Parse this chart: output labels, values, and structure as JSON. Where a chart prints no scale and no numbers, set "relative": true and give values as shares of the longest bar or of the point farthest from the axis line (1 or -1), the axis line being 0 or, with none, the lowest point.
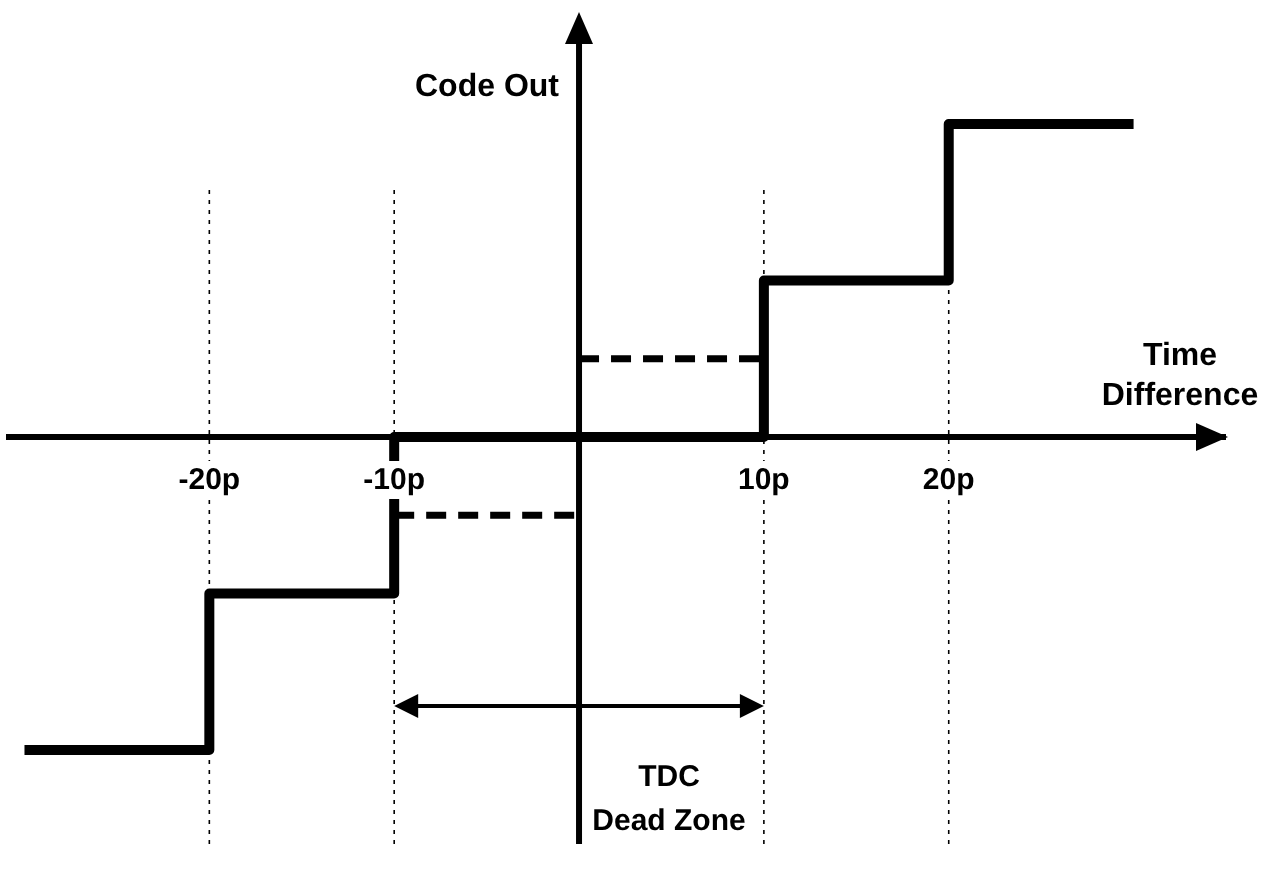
{
  "chart_data": {
    "type": "step",
    "xlabel": "Time Difference",
    "ylabel": "Code Out",
    "relative": true,
    "tick_labels": "x",
    "xlim": [
      -31,
      35
    ],
    "xticks": [
      {
        "value": -20,
        "label": "-20p"
      },
      {
        "value": -10,
        "label": "-10p"
      },
      {
        "value": 10,
        "label": "10p"
      },
      {
        "value": 20,
        "label": "20p"
      }
    ],
    "series": [
      {
        "type": "step",
        "color": "#000000",
        "line_style": "solid",
        "x": [
          -30,
          -20,
          -10,
          10,
          20,
          30
        ],
        "values": [
          -1,
          -0.5,
          0,
          0.5,
          1,
          1
        ]
      },
      {
        "type": "line",
        "color": "#000000",
        "line_style": "dashed",
        "x": [
          -10,
          0
        ],
        "values": [
          -0.25,
          -0.25
        ]
      },
      {
        "type": "line",
        "color": "#000000",
        "line_style": "dashed",
        "x": [
          0,
          10
        ],
        "values": [
          0.25,
          0.25
        ]
      }
    ],
    "ref_lines": [
      {
        "axis": "x",
        "value": -20,
        "line_style": "dotted"
      },
      {
        "axis": "x",
        "value": -10,
        "line_style": "dotted"
      },
      {
        "axis": "x",
        "value": 10,
        "line_style": "dotted"
      },
      {
        "axis": "x",
        "value": 20,
        "line_style": "dotted"
      }
    ],
    "annotations": [
      "TDC Dead Zone"
    ],
    "grid": false
  }
}
